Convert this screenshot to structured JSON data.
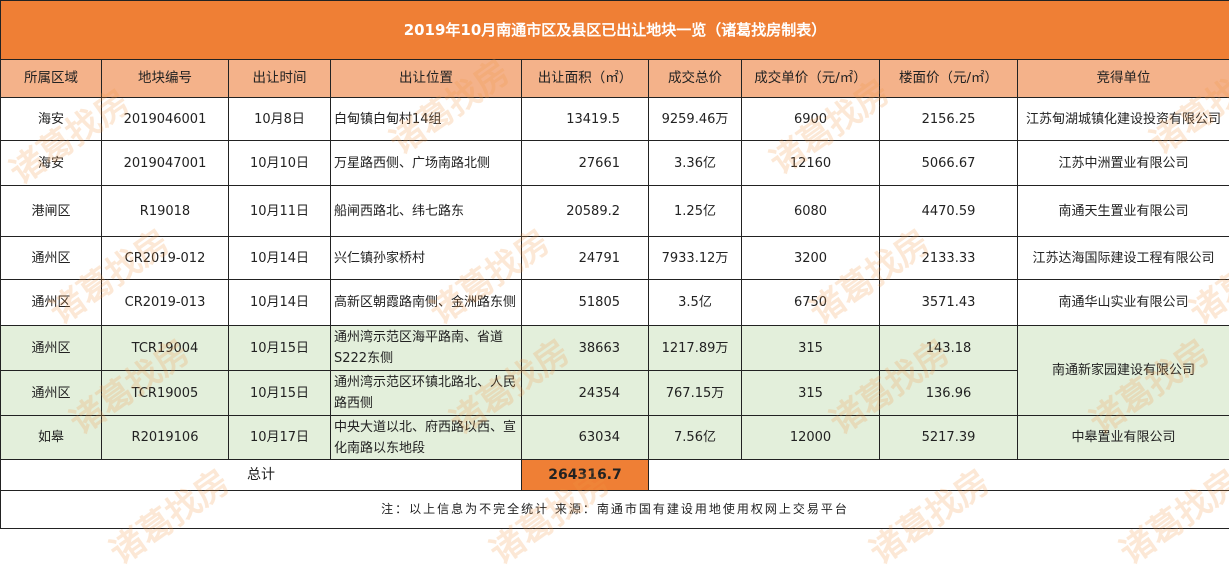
{
  "title": "2019年10月南通市区及县区已出让地块一览（诸葛找房制表）",
  "headers": [
    "所属区域",
    "地块编号",
    "出让时间",
    "出让位置",
    "出让面积（㎡）",
    "成交总价",
    "成交单价（元/㎡）",
    "楼面价（元/㎡）",
    "竞得单位"
  ],
  "rows": [
    {
      "area": "海安",
      "id": "2019046001",
      "date": "10月8日",
      "loc": "白甸镇白甸村14组",
      "size": "13419.5",
      "total": "9259.46万",
      "unit": "6900",
      "floor": "2156.25",
      "winner": "江苏甸湖城镇化建设投资有限公司"
    },
    {
      "area": "海安",
      "id": "2019047001",
      "date": "10月10日",
      "loc": "万星路西侧、广场南路北侧",
      "size": "27661",
      "total": "3.36亿",
      "unit": "12160",
      "floor": "5066.67",
      "winner": "江苏中洲置业有限公司"
    },
    {
      "area": "港闸区",
      "id": "R19018",
      "date": "10月11日",
      "loc": "船闸西路北、纬七路东",
      "size": "20589.2",
      "total": "1.25亿",
      "unit": "6080",
      "floor": "4470.59",
      "winner": "南通天生置业有限公司"
    },
    {
      "area": "通州区",
      "id": "CR2019-012",
      "date": "10月14日",
      "loc": "兴仁镇孙家桥村",
      "size": "24791",
      "total": "7933.12万",
      "unit": "3200",
      "floor": "2133.33",
      "winner": "江苏达海国际建设工程有限公司"
    },
    {
      "area": "通州区",
      "id": "CR2019-013",
      "date": "10月14日",
      "loc": "高新区朝霞路南侧、金洲路东侧",
      "size": "51805",
      "total": "3.5亿",
      "unit": "6750",
      "floor": "3571.43",
      "winner": "南通华山实业有限公司"
    },
    {
      "area": "通州区",
      "id": "TCR19004",
      "date": "10月15日",
      "loc": "通州湾示范区海平路南、省道S222东侧",
      "size": "38663",
      "total": "1217.89万",
      "unit": "315",
      "floor": "143.18",
      "winner": "南通新家园建设有限公司"
    },
    {
      "area": "通州区",
      "id": "TCR19005",
      "date": "10月15日",
      "loc": "通州湾示范区环镇北路北、人民路西侧",
      "size": "24354",
      "total": "767.15万",
      "unit": "315",
      "floor": "136.96"
    },
    {
      "area": "如皋",
      "id": "R2019106",
      "date": "10月17日",
      "loc": "中央大道以北、府西路以西、宣化南路以东地段",
      "size": "63034",
      "total": "7.56亿",
      "unit": "12000",
      "floor": "5217.39",
      "winner": "中皋置业有限公司"
    }
  ],
  "total_label": "总计",
  "total_size": "264316.7",
  "note": "注：以上信息为不完全统计  来源：南通市国有建设用地使用权网上交易平台",
  "watermark": "诸葛找房",
  "colors": {
    "title_bg": "#ef7f35",
    "header_bg": "#f4b28a",
    "green_row": "#e3efdb"
  }
}
